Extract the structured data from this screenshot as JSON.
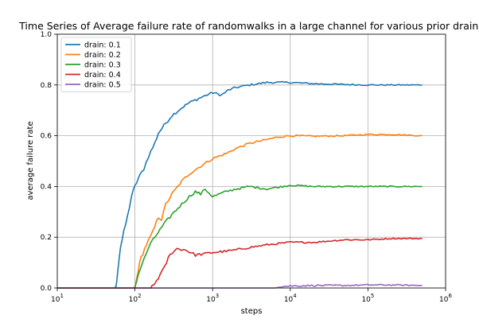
{
  "chart_data": {
    "type": "line",
    "title": "Time Series of Average failure rate of randomwalks in a large channel for various prior drains",
    "xlabel": "steps",
    "ylabel": "average failure rate",
    "xscale": "log",
    "xlim": [
      10,
      1000000
    ],
    "ylim": [
      0.0,
      1.0
    ],
    "grid": true,
    "legend_position": "top-left",
    "x_ticks": [
      {
        "value": 10,
        "base": "10",
        "exp": "1"
      },
      {
        "value": 100,
        "base": "10",
        "exp": "2"
      },
      {
        "value": 1000,
        "base": "10",
        "exp": "3"
      },
      {
        "value": 10000,
        "base": "10",
        "exp": "4"
      },
      {
        "value": 100000,
        "base": "10",
        "exp": "5"
      },
      {
        "value": 1000000,
        "base": "10",
        "exp": "6"
      }
    ],
    "y_ticks": [
      {
        "value": 0.0,
        "label": "0.0"
      },
      {
        "value": 0.2,
        "label": "0.2"
      },
      {
        "value": 0.4,
        "label": "0.4"
      },
      {
        "value": 0.6,
        "label": "0.6"
      },
      {
        "value": 0.8,
        "label": "0.8"
      },
      {
        "value": 1.0,
        "label": "1.0"
      }
    ],
    "series": [
      {
        "name": "drain: 0.1",
        "color": "#1f77b4",
        "points": [
          [
            10,
            0
          ],
          [
            57,
            0
          ],
          [
            60,
            0.07
          ],
          [
            65,
            0.16
          ],
          [
            72,
            0.22
          ],
          [
            80,
            0.28
          ],
          [
            90,
            0.36
          ],
          [
            100,
            0.4
          ],
          [
            110,
            0.43
          ],
          [
            130,
            0.47
          ],
          [
            150,
            0.52
          ],
          [
            180,
            0.57
          ],
          [
            200,
            0.61
          ],
          [
            250,
            0.65
          ],
          [
            300,
            0.68
          ],
          [
            400,
            0.71
          ],
          [
            500,
            0.73
          ],
          [
            700,
            0.75
          ],
          [
            1000,
            0.77
          ],
          [
            1300,
            0.76
          ],
          [
            1600,
            0.78
          ],
          [
            2000,
            0.79
          ],
          [
            3000,
            0.8
          ],
          [
            5000,
            0.81
          ],
          [
            10000,
            0.81
          ],
          [
            20000,
            0.805
          ],
          [
            50000,
            0.802
          ],
          [
            100000,
            0.8
          ],
          [
            200000,
            0.8
          ],
          [
            500000,
            0.8
          ]
        ]
      },
      {
        "name": "drain: 0.2",
        "color": "#ff7f0e",
        "points": [
          [
            10,
            0
          ],
          [
            100,
            0
          ],
          [
            103,
            0.02
          ],
          [
            110,
            0.07
          ],
          [
            120,
            0.12
          ],
          [
            140,
            0.17
          ],
          [
            170,
            0.22
          ],
          [
            200,
            0.28
          ],
          [
            220,
            0.27
          ],
          [
            250,
            0.33
          ],
          [
            300,
            0.37
          ],
          [
            400,
            0.42
          ],
          [
            500,
            0.45
          ],
          [
            700,
            0.48
          ],
          [
            1000,
            0.51
          ],
          [
            1500,
            0.53
          ],
          [
            2000,
            0.55
          ],
          [
            3000,
            0.57
          ],
          [
            5000,
            0.585
          ],
          [
            7000,
            0.595
          ],
          [
            10000,
            0.6
          ],
          [
            20000,
            0.598
          ],
          [
            50000,
            0.6
          ],
          [
            100000,
            0.605
          ],
          [
            200000,
            0.605
          ],
          [
            500000,
            0.6
          ]
        ]
      },
      {
        "name": "drain: 0.3",
        "color": "#2ca02c",
        "points": [
          [
            10,
            0
          ],
          [
            100,
            0
          ],
          [
            105,
            0.03
          ],
          [
            115,
            0.07
          ],
          [
            130,
            0.11
          ],
          [
            150,
            0.16
          ],
          [
            180,
            0.2
          ],
          [
            200,
            0.22
          ],
          [
            250,
            0.26
          ],
          [
            300,
            0.29
          ],
          [
            400,
            0.33
          ],
          [
            500,
            0.36
          ],
          [
            600,
            0.38
          ],
          [
            700,
            0.37
          ],
          [
            800,
            0.39
          ],
          [
            1000,
            0.36
          ],
          [
            1500,
            0.38
          ],
          [
            2000,
            0.39
          ],
          [
            3000,
            0.4
          ],
          [
            5000,
            0.39
          ],
          [
            10000,
            0.405
          ],
          [
            20000,
            0.4
          ],
          [
            50000,
            0.4
          ],
          [
            100000,
            0.4
          ],
          [
            200000,
            0.4
          ],
          [
            500000,
            0.4
          ]
        ]
      },
      {
        "name": "drain: 0.4",
        "color": "#d62728",
        "points": [
          [
            10,
            0
          ],
          [
            160,
            0
          ],
          [
            175,
            0.01
          ],
          [
            190,
            0.03
          ],
          [
            210,
            0.05
          ],
          [
            240,
            0.08
          ],
          [
            270,
            0.12
          ],
          [
            300,
            0.14
          ],
          [
            350,
            0.155
          ],
          [
            450,
            0.15
          ],
          [
            600,
            0.13
          ],
          [
            800,
            0.135
          ],
          [
            1000,
            0.14
          ],
          [
            1500,
            0.145
          ],
          [
            2000,
            0.15
          ],
          [
            3000,
            0.16
          ],
          [
            5000,
            0.17
          ],
          [
            10000,
            0.18
          ],
          [
            20000,
            0.18
          ],
          [
            50000,
            0.19
          ],
          [
            100000,
            0.19
          ],
          [
            200000,
            0.195
          ],
          [
            500000,
            0.195
          ]
        ]
      },
      {
        "name": "drain: 0.5",
        "color": "#9467bd",
        "points": [
          [
            10,
            0
          ],
          [
            6000,
            0
          ],
          [
            7000,
            0.005
          ],
          [
            10000,
            0.008
          ],
          [
            20000,
            0.01
          ],
          [
            50000,
            0.01
          ],
          [
            100000,
            0.012
          ],
          [
            200000,
            0.012
          ],
          [
            500000,
            0.01
          ]
        ]
      }
    ]
  }
}
